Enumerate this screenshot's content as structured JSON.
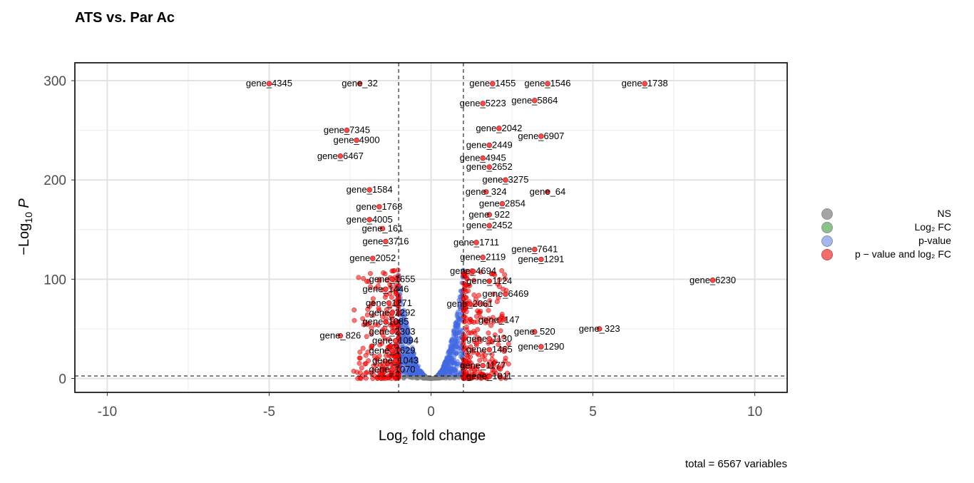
{
  "title": "ATS vs. Par Ac",
  "caption": "total = 6567 variables",
  "legend": {
    "items": [
      {
        "label": "NS",
        "color": "#808080"
      },
      {
        "label": "Log₂ FC",
        "color": "#5aab5a"
      },
      {
        "label": "p-value",
        "color": "#7a9ae8"
      },
      {
        "label": "p − value and log₂ FC",
        "color": "#f03030"
      }
    ]
  },
  "chart_data": {
    "type": "scatter",
    "title": "ATS vs. Par Ac",
    "xlabel": "Log₂ fold change",
    "ylabel": "−Log₁₀ P",
    "xlim": [
      -11,
      11
    ],
    "ylim": [
      -14,
      318
    ],
    "xticks": [
      "-10",
      "-5",
      "0",
      "5",
      "10"
    ],
    "xtick_values": [
      -10,
      -5,
      0,
      5,
      10
    ],
    "yticks": [
      "0",
      "100",
      "200",
      "300"
    ],
    "ytick_values": [
      0,
      100,
      200,
      300
    ],
    "fc_cutoff": 1,
    "p_cutoff_log": 2.5,
    "grid": true,
    "legend_position": "right",
    "labeled_points": [
      {
        "gene": "gene_4345",
        "x": -5.0,
        "y": 297
      },
      {
        "gene": "gene_32",
        "x": -2.2,
        "y": 297
      },
      {
        "gene": "gene_1455",
        "x": 1.9,
        "y": 297
      },
      {
        "gene": "gene_1546",
        "x": 3.6,
        "y": 297
      },
      {
        "gene": "gene_1738",
        "x": 6.6,
        "y": 297
      },
      {
        "gene": "gene_5223",
        "x": 1.6,
        "y": 277
      },
      {
        "gene": "gene_5864",
        "x": 3.2,
        "y": 280
      },
      {
        "gene": "gene_7345",
        "x": -2.6,
        "y": 250
      },
      {
        "gene": "gene_4900",
        "x": -2.3,
        "y": 240
      },
      {
        "gene": "gene_2042",
        "x": 2.1,
        "y": 252
      },
      {
        "gene": "gene_6907",
        "x": 3.4,
        "y": 244
      },
      {
        "gene": "gene_2449",
        "x": 1.8,
        "y": 235
      },
      {
        "gene": "gene_6467",
        "x": -2.8,
        "y": 224
      },
      {
        "gene": "gene_4945",
        "x": 1.6,
        "y": 222
      },
      {
        "gene": "gene_2652",
        "x": 1.8,
        "y": 213
      },
      {
        "gene": "gene_3275",
        "x": 2.3,
        "y": 200
      },
      {
        "gene": "gene_1584",
        "x": -1.9,
        "y": 190
      },
      {
        "gene": "gene_324",
        "x": 1.7,
        "y": 188
      },
      {
        "gene": "gene_64",
        "x": 3.6,
        "y": 188
      },
      {
        "gene": "gene_2854",
        "x": 2.2,
        "y": 176
      },
      {
        "gene": "gene_1768",
        "x": -1.6,
        "y": 173
      },
      {
        "gene": "gene_922",
        "x": 1.8,
        "y": 165
      },
      {
        "gene": "gene_4005",
        "x": -1.9,
        "y": 160
      },
      {
        "gene": "gene_2452",
        "x": 1.8,
        "y": 154
      },
      {
        "gene": "gene_161",
        "x": -1.5,
        "y": 151
      },
      {
        "gene": "gene_3716",
        "x": -1.4,
        "y": 138
      },
      {
        "gene": "gene_1711",
        "x": 1.4,
        "y": 137
      },
      {
        "gene": "gene_7641",
        "x": 3.2,
        "y": 130
      },
      {
        "gene": "gene_2052",
        "x": -1.8,
        "y": 121
      },
      {
        "gene": "gene_2119",
        "x": 1.6,
        "y": 122
      },
      {
        "gene": "gene_1291",
        "x": 3.4,
        "y": 120
      },
      {
        "gene": "gene_4694",
        "x": 1.3,
        "y": 108
      },
      {
        "gene": "gene_1655",
        "x": -1.2,
        "y": 100
      },
      {
        "gene": "gene_1124",
        "x": 1.8,
        "y": 98
      },
      {
        "gene": "gene_6230",
        "x": 8.7,
        "y": 99
      },
      {
        "gene": "gene_1446",
        "x": -1.4,
        "y": 90
      },
      {
        "gene": "gene_6469",
        "x": 2.3,
        "y": 85
      },
      {
        "gene": "gene_1271",
        "x": -1.3,
        "y": 76
      },
      {
        "gene": "gene_2061",
        "x": 1.2,
        "y": 75
      },
      {
        "gene": "gene_2292",
        "x": -1.2,
        "y": 66
      },
      {
        "gene": "gene_147",
        "x": 2.1,
        "y": 59
      },
      {
        "gene": "gene_1085",
        "x": -1.4,
        "y": 57
      },
      {
        "gene": "gene_323",
        "x": 5.2,
        "y": 50
      },
      {
        "gene": "gene_2303",
        "x": -1.2,
        "y": 47
      },
      {
        "gene": "gene_520",
        "x": 3.2,
        "y": 47
      },
      {
        "gene": "gene_826",
        "x": -2.8,
        "y": 43
      },
      {
        "gene": "gene_1094",
        "x": -1.1,
        "y": 38
      },
      {
        "gene": "gene_1130",
        "x": 1.8,
        "y": 40
      },
      {
        "gene": "gene_1629",
        "x": -1.2,
        "y": 28
      },
      {
        "gene": "gene_1465",
        "x": 1.8,
        "y": 29
      },
      {
        "gene": "gene_1290",
        "x": 3.4,
        "y": 32
      },
      {
        "gene": "gene_1043",
        "x": -1.1,
        "y": 18
      },
      {
        "gene": "gene_1177",
        "x": 1.6,
        "y": 13
      },
      {
        "gene": "gene_1070",
        "x": -1.2,
        "y": 9
      },
      {
        "gene": "gene_1011",
        "x": 1.8,
        "y": 2
      }
    ]
  }
}
